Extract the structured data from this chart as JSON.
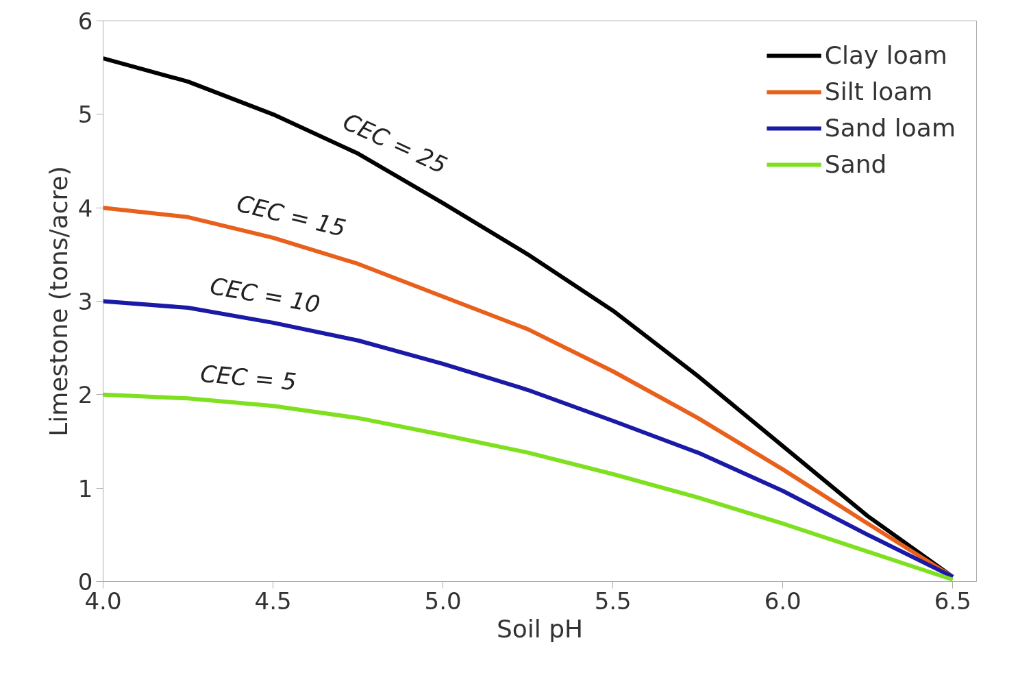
{
  "chart_data": {
    "type": "line",
    "xlabel": "Soil pH",
    "ylabel": "Limestone (tons/acre)",
    "xlim": [
      4.0,
      6.57
    ],
    "ylim": [
      0,
      6
    ],
    "xticks": [
      {
        "value": 4.0,
        "label": "4.0"
      },
      {
        "value": 4.5,
        "label": "4.5"
      },
      {
        "value": 5.0,
        "label": "5.0"
      },
      {
        "value": 5.5,
        "label": "5.5"
      },
      {
        "value": 6.0,
        "label": "6.0"
      },
      {
        "value": 6.5,
        "label": "6.5"
      }
    ],
    "yticks": [
      0,
      1,
      2,
      3,
      4,
      5,
      6
    ],
    "x": [
      4.0,
      4.25,
      4.5,
      4.75,
      5.0,
      5.25,
      5.5,
      5.75,
      6.0,
      6.25,
      6.5
    ],
    "series": [
      {
        "name": "Clay loam",
        "color": "#000000",
        "values": [
          5.6,
          5.35,
          5.0,
          4.58,
          4.05,
          3.5,
          2.9,
          2.2,
          1.45,
          0.7,
          0.05
        ]
      },
      {
        "name": "Silt loam",
        "color": "#e8601c",
        "values": [
          4.0,
          3.9,
          3.68,
          3.4,
          3.05,
          2.7,
          2.25,
          1.75,
          1.2,
          0.62,
          0.05
        ]
      },
      {
        "name": "Sand loam",
        "color": "#1a1aa6",
        "values": [
          3.0,
          2.93,
          2.77,
          2.58,
          2.33,
          2.05,
          1.72,
          1.38,
          0.97,
          0.5,
          0.05
        ]
      },
      {
        "name": "Sand",
        "color": "#7ee01e",
        "values": [
          2.0,
          1.96,
          1.88,
          1.75,
          1.57,
          1.38,
          1.15,
          0.9,
          0.62,
          0.32,
          0.02
        ]
      }
    ],
    "annotations": [
      "CEC = 25",
      "CEC = 15",
      "CEC = 10",
      "CEC = 5"
    ],
    "grid": false,
    "legend": "top right",
    "marker": "none",
    "line_style": "solid"
  }
}
